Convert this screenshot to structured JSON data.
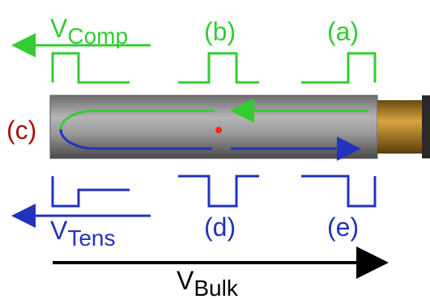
{
  "labels": {
    "v_comp": {
      "symbol": "V",
      "subscript": "Comp"
    },
    "b": "(b)",
    "a": "(a)",
    "c": "(c)",
    "v_tens": {
      "symbol": "V",
      "subscript": "Tens"
    },
    "d": "(d)",
    "e": "(e)",
    "v_bulk": {
      "symbol": "V",
      "subscript": "Bulk"
    }
  }
}
